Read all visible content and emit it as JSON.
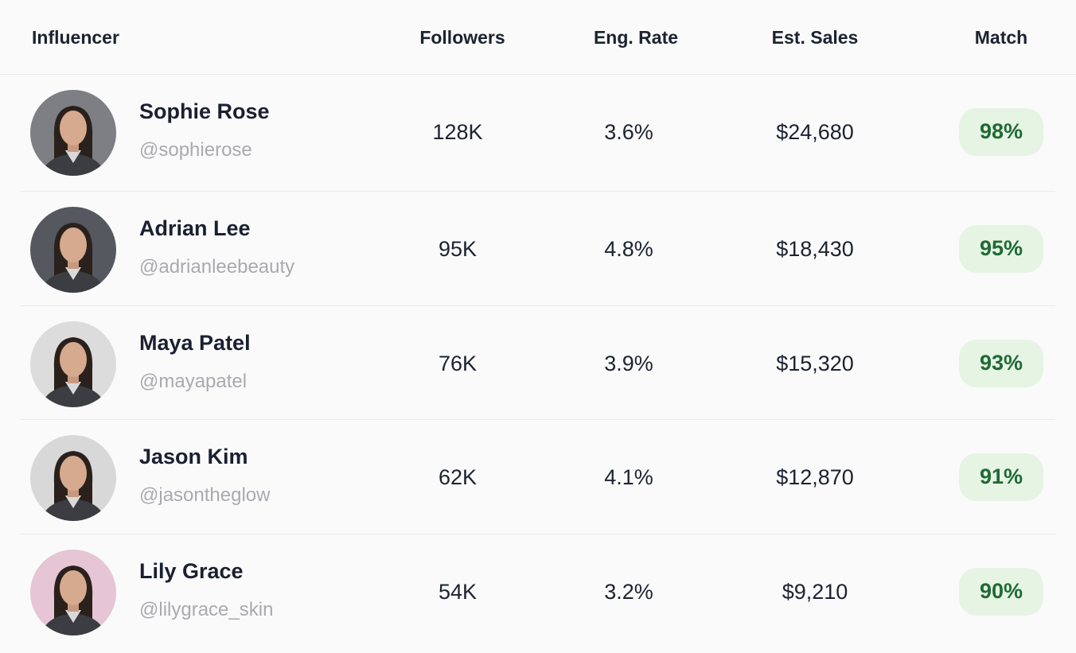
{
  "table": {
    "header": [
      "Influencer",
      "Followers",
      "Eng. Rate",
      "Est. Sales",
      "Match"
    ],
    "rows": [
      {
        "name": "Sophie Rose",
        "handle": "@sophierose",
        "followers": "128K",
        "eng_rate": "3.6%",
        "sales": "$24,680",
        "match": "98%"
      },
      {
        "name": "Adrian Lee",
        "handle": "@adrianleebeauty",
        "followers": "95K",
        "eng_rate": "4.8%",
        "sales": "$18,430",
        "match": "95%"
      },
      {
        "name": "Maya Patel",
        "handle": "@mayapatel",
        "followers": "76K",
        "eng_rate": "3.9%",
        "sales": "$15,320",
        "match": "93%"
      },
      {
        "name": "Jason Kim",
        "handle": "@jasontheglow",
        "followers": "62K",
        "eng_rate": "4.1%",
        "sales": "$12,870",
        "match": "91%"
      },
      {
        "name": "Lily Grace",
        "handle": "@lilygrace_skin",
        "followers": "54K",
        "eng_rate": "3.2%",
        "sales": "$9,210",
        "match": "90%"
      }
    ]
  }
}
